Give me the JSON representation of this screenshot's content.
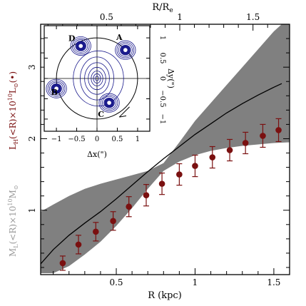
{
  "chart_data": {
    "type": "line",
    "title": "",
    "xlabel": "R (kpc)",
    "x2label": "R/R",
    "x2label_sub": "e",
    "ylabel_left_red_main": "L",
    "ylabel_left_red_sub": "H",
    "ylabel_left_red_rest": "(<R)×10",
    "ylabel_left_red_sup": "10",
    "ylabel_left_red_tail": "L",
    "ylabel_left_red_sun": "⊙",
    "ylabel_left_red_paren": "(•)",
    "ylabel_left_grey_main": "M",
    "ylabel_left_grey_sub": "L",
    "ylabel_left_grey_rest": "(<R)×10",
    "ylabel_left_grey_sup": "10",
    "ylabel_left_grey_tail": "M",
    "ylabel_left_grey_sun": "⊙",
    "xlim": [
      0.02,
      1.6
    ],
    "ylim": [
      0.1,
      3.6
    ],
    "x2lim": [
      0.05,
      1.75
    ],
    "xticks": [
      0.5,
      1,
      1.5
    ],
    "xtick_labels": [
      "0.5",
      "1",
      "1.5"
    ],
    "yticks": [
      1,
      2,
      3
    ],
    "ytick_labels": [
      "1",
      "2",
      "3"
    ],
    "x2ticks": [
      0.5,
      1,
      1.5
    ],
    "x2tick_labels": [
      "0.5",
      "1",
      "1.5"
    ],
    "series": [
      {
        "kind": "band",
        "color": "#808080",
        "x": [
          0.02,
          0.1,
          0.2,
          0.3,
          0.4,
          0.5,
          0.6,
          0.7,
          0.8,
          0.9,
          1.0,
          1.1,
          1.2,
          1.3,
          1.4,
          1.5,
          1.6
        ],
        "lower": [
          0.12,
          0.12,
          0.22,
          0.38,
          0.56,
          0.78,
          1.03,
          1.3,
          1.55,
          1.68,
          1.77,
          1.83,
          1.87,
          1.9,
          1.92,
          1.94,
          1.95
        ],
        "upper": [
          0.98,
          1.08,
          1.2,
          1.3,
          1.37,
          1.43,
          1.49,
          1.55,
          1.66,
          1.95,
          2.25,
          2.5,
          2.75,
          3.0,
          3.25,
          3.5,
          3.7
        ]
      },
      {
        "kind": "line",
        "color": "#000000",
        "x": [
          0.02,
          0.1,
          0.2,
          0.3,
          0.4,
          0.5,
          0.6,
          0.7,
          0.8,
          0.9,
          1.0,
          1.1,
          1.2,
          1.3,
          1.4,
          1.5,
          1.55
        ],
        "y": [
          0.25,
          0.45,
          0.65,
          0.82,
          0.98,
          1.16,
          1.35,
          1.54,
          1.72,
          1.89,
          2.06,
          2.21,
          2.36,
          2.49,
          2.61,
          2.72,
          2.77
        ]
      },
      {
        "kind": "points",
        "color": "#7a1010",
        "x": [
          0.16,
          0.26,
          0.37,
          0.48,
          0.58,
          0.69,
          0.79,
          0.9,
          1.0,
          1.11,
          1.22,
          1.32,
          1.43,
          1.53
        ],
        "y": [
          0.26,
          0.52,
          0.7,
          0.85,
          1.05,
          1.21,
          1.37,
          1.5,
          1.62,
          1.74,
          1.84,
          1.94,
          2.04,
          2.12
        ],
        "err": [
          0.1,
          0.13,
          0.13,
          0.13,
          0.14,
          0.15,
          0.15,
          0.15,
          0.15,
          0.15,
          0.15,
          0.15,
          0.16,
          0.16
        ]
      }
    ],
    "inset": {
      "type": "contour image",
      "xlabel": "Δx(\")",
      "ylabel": "Δy(\")",
      "xlim": [
        -1.3,
        1.3
      ],
      "ylim": [
        -1.3,
        1.3
      ],
      "ticks": [
        -1,
        -0.5,
        0,
        0.5,
        1
      ],
      "tick_labels": [
        "−1",
        "−0.5",
        "0",
        "0.5",
        "1"
      ],
      "images": [
        {
          "label": "A",
          "x": 0.7,
          "y": 0.7
        },
        {
          "label": "B",
          "x": -1.0,
          "y": -0.25
        },
        {
          "label": "C",
          "x": 0.3,
          "y": -0.6
        },
        {
          "label": "D",
          "x": -0.4,
          "y": 0.8
        }
      ],
      "galaxy": {
        "x": 0.0,
        "y": 0.0
      },
      "circle_radius": 1.0
    }
  }
}
